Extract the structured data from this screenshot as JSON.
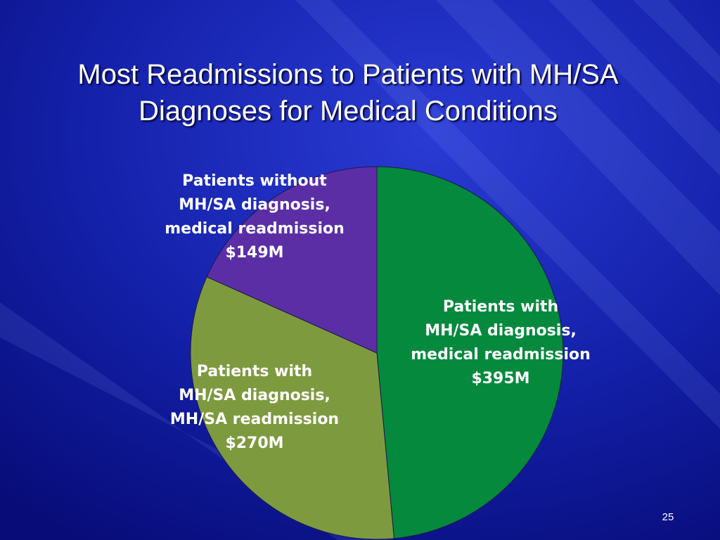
{
  "slide": {
    "title_lines": [
      "Most Readmissions to Patients with MH/SA",
      "Diagnoses for Medical Conditions"
    ],
    "page_number": "25"
  },
  "colors": {
    "background": "#0b0f8c",
    "label_text": "#ffffff"
  },
  "chart_data": {
    "type": "pie",
    "title": "",
    "values_unit": "$M",
    "slices": [
      {
        "label_lines": [
          "Patients with",
          "MH/SA diagnosis,",
          "medical readmission",
          "$395M"
        ],
        "value": 395,
        "color": "#04893d"
      },
      {
        "label_lines": [
          "Patients with",
          "MH/SA diagnosis,",
          "MH/SA readmission",
          "$270M"
        ],
        "value": 270,
        "color": "#7e9a3f"
      },
      {
        "label_lines": [
          "Patients without",
          "MH/SA diagnosis,",
          "medical readmission",
          "$149M"
        ],
        "value": 149,
        "color": "#5b2ea6"
      }
    ],
    "legend": "none",
    "start_angle": "12 o'clock",
    "direction": "clockwise"
  }
}
